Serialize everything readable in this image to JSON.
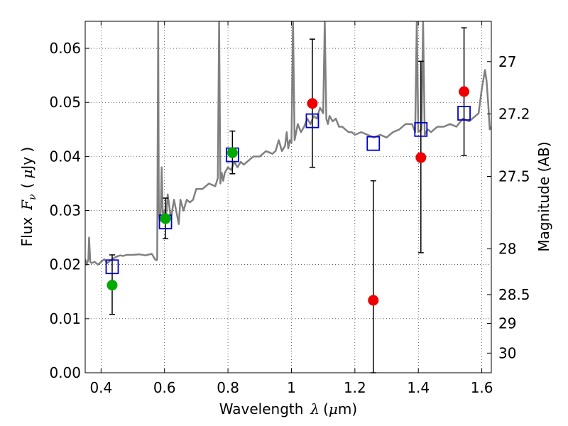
{
  "chart_data": {
    "type": "scatter",
    "title": "",
    "xlabel": {
      "prefix": "Wavelength",
      "symbol": "λ",
      "unit_open": "(",
      "unit_mu": "μ",
      "unit_rest": "m)"
    },
    "ylabel": {
      "prefix": "Flux",
      "symbol": "F",
      "subscript": "ν",
      "unit_open": "(",
      "unit_mu": "μ",
      "unit_rest": "Jy )"
    },
    "y2label": "Magnitude (AB)",
    "xlim": [
      0.35,
      1.63
    ],
    "ylim": [
      0.0,
      0.065
    ],
    "grid": true,
    "xticks": [
      {
        "value": 0.4,
        "label": "0.4"
      },
      {
        "value": 0.6,
        "label": "0.6"
      },
      {
        "value": 0.8,
        "label": "0.8"
      },
      {
        "value": 1.0,
        "label": "1"
      },
      {
        "value": 1.2,
        "label": "1.2"
      },
      {
        "value": 1.4,
        "label": "1.4"
      },
      {
        "value": 1.6,
        "label": "1.6"
      }
    ],
    "yticks": [
      {
        "value": 0.0,
        "label": "0.00"
      },
      {
        "value": 0.01,
        "label": "0.01"
      },
      {
        "value": 0.02,
        "label": "0.02"
      },
      {
        "value": 0.03,
        "label": "0.03"
      },
      {
        "value": 0.04,
        "label": "0.04"
      },
      {
        "value": 0.05,
        "label": "0.05"
      },
      {
        "value": 0.06,
        "label": "0.06"
      }
    ],
    "magnitude_ticks": [
      {
        "value": 27,
        "label": "27"
      },
      {
        "value": 27.2,
        "label": "27.2"
      },
      {
        "value": 27.5,
        "label": "27.5"
      },
      {
        "value": 28,
        "label": "28"
      },
      {
        "value": 28.5,
        "label": "28.5"
      },
      {
        "value": 29,
        "label": "29"
      },
      {
        "value": 30,
        "label": "30"
      }
    ],
    "series": [
      {
        "kind": "model-spectrum",
        "color": "#808080",
        "x": [
          0.35,
          0.355,
          0.36,
          0.362,
          0.366,
          0.37,
          0.38,
          0.39,
          0.4,
          0.41,
          0.42,
          0.43,
          0.44,
          0.45,
          0.46,
          0.47,
          0.48,
          0.5,
          0.52,
          0.54,
          0.56,
          0.57,
          0.575,
          0.577,
          0.58,
          0.582,
          0.585,
          0.588,
          0.591,
          0.595,
          0.6,
          0.605,
          0.61,
          0.62,
          0.63,
          0.64,
          0.645,
          0.65,
          0.66,
          0.67,
          0.68,
          0.69,
          0.7,
          0.72,
          0.74,
          0.76,
          0.768,
          0.772,
          0.776,
          0.78,
          0.785,
          0.79,
          0.8,
          0.81,
          0.82,
          0.83,
          0.84,
          0.85,
          0.86,
          0.87,
          0.88,
          0.9,
          0.92,
          0.94,
          0.95,
          0.96,
          0.97,
          0.98,
          0.985,
          0.99,
          0.995,
          1.0,
          1.005,
          1.01,
          1.02,
          1.03,
          1.04,
          1.05,
          1.06,
          1.07,
          1.08,
          1.09,
          1.1,
          1.105,
          1.11,
          1.115,
          1.12,
          1.13,
          1.14,
          1.15,
          1.16,
          1.17,
          1.18,
          1.19,
          1.2,
          1.22,
          1.24,
          1.26,
          1.28,
          1.3,
          1.32,
          1.34,
          1.36,
          1.38,
          1.39,
          1.395,
          1.4,
          1.41,
          1.415,
          1.42,
          1.43,
          1.44,
          1.46,
          1.48,
          1.5,
          1.52,
          1.54,
          1.56,
          1.58,
          1.59,
          1.6,
          1.61,
          1.615,
          1.62,
          1.625,
          1.63
        ],
        "y": [
          0.021,
          0.02,
          0.021,
          0.025,
          0.0205,
          0.0203,
          0.0205,
          0.02,
          0.0205,
          0.021,
          0.0203,
          0.0208,
          0.0212,
          0.0215,
          0.0217,
          0.0216,
          0.0218,
          0.0218,
          0.0219,
          0.0217,
          0.022,
          0.021,
          0.0208,
          0.021,
          0.065,
          0.03,
          0.028,
          0.03,
          0.038,
          0.028,
          0.03,
          0.029,
          0.033,
          0.0285,
          0.032,
          0.029,
          0.0275,
          0.032,
          0.03,
          0.032,
          0.0315,
          0.032,
          0.034,
          0.034,
          0.035,
          0.0345,
          0.036,
          0.065,
          0.035,
          0.037,
          0.0355,
          0.037,
          0.038,
          0.0375,
          0.039,
          0.038,
          0.039,
          0.0385,
          0.039,
          0.0395,
          0.04,
          0.04,
          0.041,
          0.0405,
          0.041,
          0.043,
          0.041,
          0.042,
          0.0445,
          0.0415,
          0.043,
          0.0425,
          0.065,
          0.043,
          0.046,
          0.0445,
          0.0455,
          0.047,
          0.046,
          0.0475,
          0.047,
          0.049,
          0.048,
          0.065,
          0.047,
          0.046,
          0.0475,
          0.0465,
          0.047,
          0.0455,
          0.0455,
          0.045,
          0.0445,
          0.0445,
          0.044,
          0.0445,
          0.044,
          0.0435,
          0.044,
          0.0435,
          0.0445,
          0.045,
          0.046,
          0.046,
          0.0445,
          0.065,
          0.0445,
          0.045,
          0.065,
          0.044,
          0.045,
          0.0445,
          0.0455,
          0.0455,
          0.046,
          0.0455,
          0.047,
          0.0465,
          0.0475,
          0.048,
          0.0525,
          0.056,
          0.054,
          0.05,
          0.045,
          0.0455
        ]
      },
      {
        "kind": "model-photometry",
        "color": "#0000cc",
        "x": [
          0.435,
          0.603,
          0.814,
          1.066,
          1.258,
          1.408,
          1.544
        ],
        "y": [
          0.0196,
          0.0279,
          0.0403,
          0.0466,
          0.0424,
          0.045,
          0.048
        ]
      },
      {
        "kind": "observed-optical",
        "color": "#00aa00",
        "x": [
          0.435,
          0.603,
          0.814
        ],
        "y": [
          0.0162,
          0.0285,
          0.0407
        ],
        "yerr_low": [
          0.0108,
          0.0248,
          0.0368
        ],
        "yerr_high": [
          0.0218,
          0.0323,
          0.0447
        ]
      },
      {
        "kind": "observed-infrared",
        "color": "#ee0000",
        "x": [
          1.066,
          1.258,
          1.408,
          1.544
        ],
        "y": [
          0.0498,
          0.0134,
          0.0398,
          0.052
        ],
        "yerr_low": [
          0.038,
          0.0,
          0.0222,
          0.0402
        ],
        "yerr_high": [
          0.0617,
          0.0355,
          0.0576,
          0.0638
        ]
      }
    ]
  }
}
